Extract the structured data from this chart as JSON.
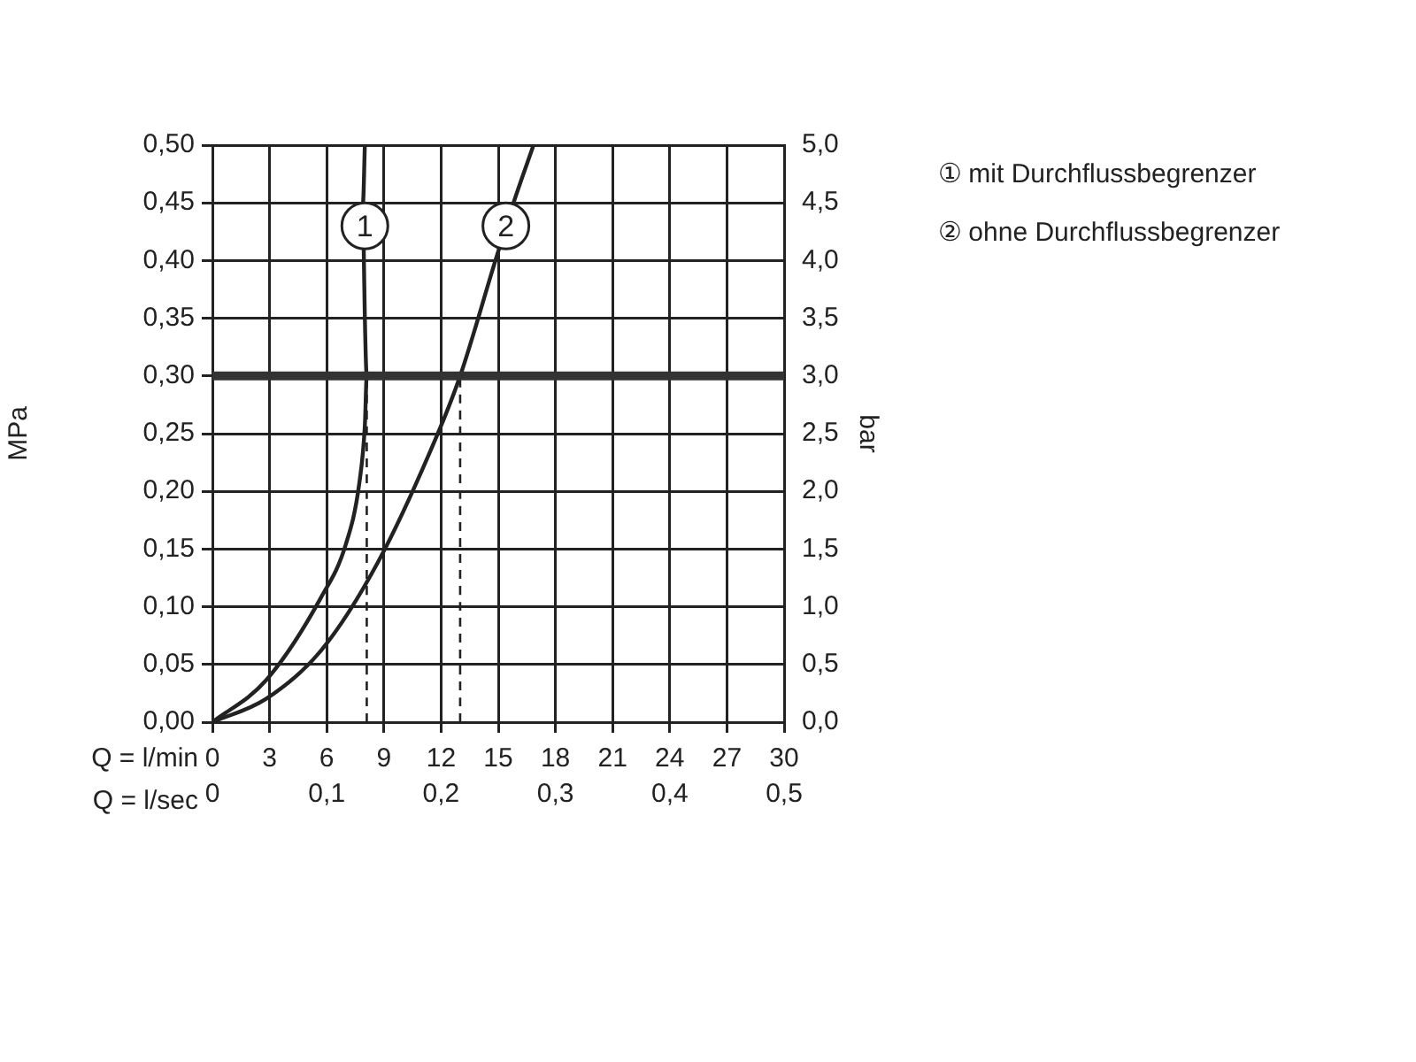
{
  "chart_data": {
    "type": "line",
    "xlabel": "Q = l/min",
    "x2label": "Q = l/sec",
    "ylabel": "MPa",
    "y2label": "bar",
    "xlim": [
      0,
      30
    ],
    "xticks": [
      0,
      3,
      6,
      9,
      12,
      15,
      18,
      21,
      24,
      27,
      30
    ],
    "x2lim": [
      0,
      0.5
    ],
    "x2ticks": [
      0,
      {
        "value": 0.1,
        "label": "0,1"
      },
      {
        "value": 0.2,
        "label": "0,2"
      },
      {
        "value": 0.3,
        "label": "0,3"
      },
      {
        "value": 0.4,
        "label": "0,4"
      },
      {
        "value": 0.5,
        "label": "0,5"
      }
    ],
    "ylim": [
      0,
      0.5
    ],
    "yticks": [
      {
        "value": 0,
        "label": "0,00"
      },
      {
        "value": 0.05,
        "label": "0,05"
      },
      {
        "value": 0.1,
        "label": "0,10"
      },
      {
        "value": 0.15,
        "label": "0,15"
      },
      {
        "value": 0.2,
        "label": "0,20"
      },
      {
        "value": 0.25,
        "label": "0,25"
      },
      {
        "value": 0.3,
        "label": "0,30"
      },
      {
        "value": 0.35,
        "label": "0,35"
      },
      {
        "value": 0.4,
        "label": "0,40"
      },
      {
        "value": 0.45,
        "label": "0,45"
      },
      {
        "value": 0.5,
        "label": "0,50"
      }
    ],
    "y2lim": [
      0,
      5
    ],
    "y2ticks": [
      {
        "value": 0,
        "label": "0,0"
      },
      {
        "value": 0.5,
        "label": "0,5"
      },
      {
        "value": 1,
        "label": "1,0"
      },
      {
        "value": 1.5,
        "label": "1,5"
      },
      {
        "value": 2,
        "label": "2,0"
      },
      {
        "value": 2.5,
        "label": "2,5"
      },
      {
        "value": 3,
        "label": "3,0"
      },
      {
        "value": 3.5,
        "label": "3,5"
      },
      {
        "value": 4,
        "label": "4,0"
      },
      {
        "value": 4.5,
        "label": "4,5"
      },
      {
        "value": 5,
        "label": "5,0"
      }
    ],
    "series": [
      {
        "name": "① mit Durchflussbegrenzer",
        "color": "#222222",
        "line_style": "solid",
        "x": [
          0,
          2.8,
          5.7,
          7.0,
          7.7,
          8.0,
          8.1,
          8.0,
          7.95,
          7.9,
          8.0
        ],
        "values": [
          0,
          0.036,
          0.108,
          0.154,
          0.206,
          0.257,
          0.3,
          0.35,
          0.4,
          0.45,
          0.5
        ]
      },
      {
        "name": "② ohne Durchflussbegrenzer",
        "color": "#222222",
        "line_style": "solid",
        "x": [
          0,
          2.8,
          5.7,
          8.7,
          11.75,
          13.0,
          14.85,
          15.8,
          16.85
        ],
        "values": [
          0,
          0.02,
          0.062,
          0.139,
          0.247,
          0.3,
          0.4,
          0.45,
          0.5
        ]
      },
      {
        "color": "#222222",
        "line_style": "dashed",
        "x": [
          8.1,
          8.1
        ],
        "values": [
          0,
          0.3
        ]
      },
      {
        "color": "#222222",
        "line_style": "dashed",
        "x": [
          13.0,
          13.0
        ],
        "values": [
          0,
          0.3
        ]
      }
    ],
    "ref_lines": [
      {
        "axis": "y",
        "value": 0.3,
        "color": "#333333"
      }
    ],
    "annotations": [
      {
        "text": "1",
        "x": 8.0,
        "y": 0.43
      },
      {
        "text": "2",
        "x": 15.4,
        "y": 0.43
      }
    ],
    "grid": true,
    "legend": "top right",
    "marker": "none"
  }
}
